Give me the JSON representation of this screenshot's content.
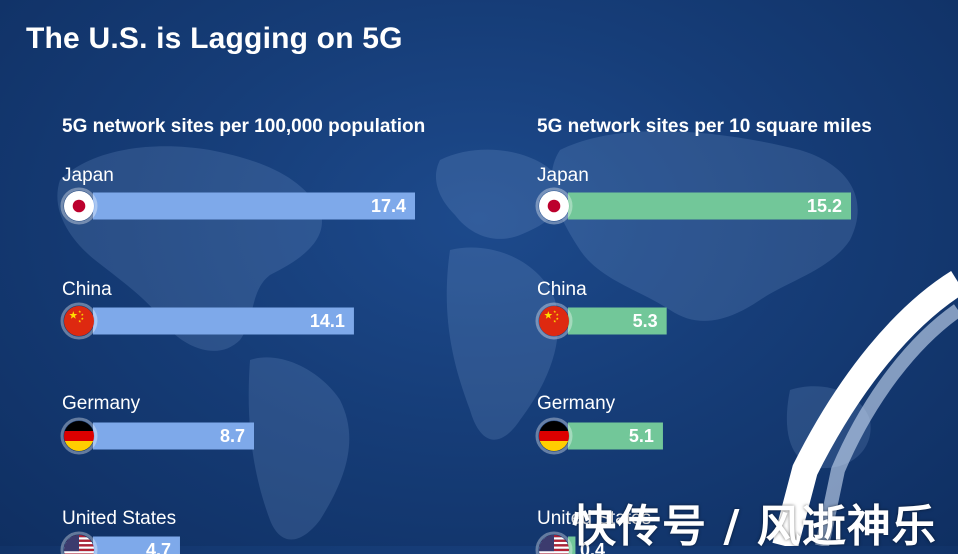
{
  "title": "The U.S. is Lagging on 5G",
  "watermark": "快传号 / 风逝神乐",
  "colors": {
    "background": "#163d78",
    "left_bar": "#7ea9ea",
    "right_bar": "#72c799",
    "text": "#ffffff"
  },
  "chart_data": [
    {
      "type": "bar",
      "orientation": "horizontal",
      "title": "5G network sites per 100,000 population",
      "categories": [
        "Japan",
        "China",
        "Germany",
        "United States"
      ],
      "values": [
        17.4,
        14.1,
        8.7,
        4.7
      ],
      "value_labels": [
        "17.4",
        "14.1",
        "8.7",
        "4.7"
      ],
      "flags": [
        "japan-flag-icon",
        "china-flag-icon",
        "germany-flag-icon",
        "us-flag-icon"
      ],
      "color": "#7ea9ea"
    },
    {
      "type": "bar",
      "orientation": "horizontal",
      "title": "5G network sites per 10 square miles",
      "categories": [
        "Japan",
        "China",
        "Germany",
        "United States"
      ],
      "values": [
        15.2,
        5.3,
        5.1,
        0.4
      ],
      "value_labels": [
        "15.2",
        "5.3",
        "5.1",
        "0.4"
      ],
      "flags": [
        "japan-flag-icon",
        "china-flag-icon",
        "germany-flag-icon",
        "us-flag-icon"
      ],
      "color": "#72c799"
    }
  ]
}
